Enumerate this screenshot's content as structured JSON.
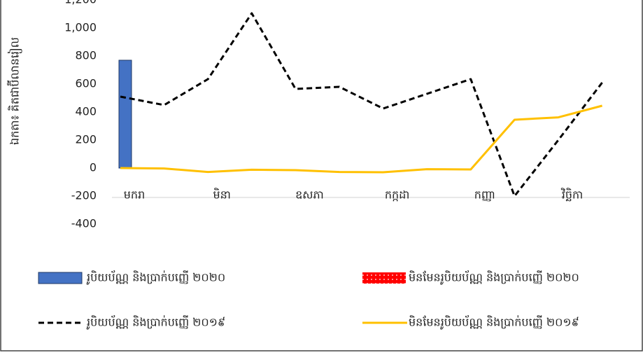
{
  "chart_data": {
    "type": "bar",
    "y_label": "ឯកតា៖ គិតជាប៊ីលានរៀល",
    "categories": [
      "មករា",
      null,
      "មិនា",
      null,
      "ឧសភា",
      null,
      "កក្កដា",
      null,
      "កញ្ញា",
      null,
      "វិច្ឆិកា",
      null
    ],
    "series": [
      {
        "name": "រូបិយប័ណ្ណ និងប្រាក់បញ្ញើ ២០២០",
        "type": "bar",
        "color": "#4472c4",
        "values": [
          770,
          null,
          null,
          null,
          null,
          null,
          null,
          null,
          null,
          null,
          null,
          null
        ]
      },
      {
        "name": "មិនមែនរូបិយប័ណ្ណ និងប្រាក់បញ្ញើ ២០២០",
        "type": "bar",
        "color": "#ff0000",
        "values": [
          null,
          null,
          null,
          null,
          null,
          null,
          null,
          null,
          null,
          null,
          null,
          null
        ]
      },
      {
        "name": "រូបិយប័ណ្ណ និងប្រាក់បញ្ញើ ២០១៩",
        "type": "line",
        "dashed": true,
        "color": "#000000",
        "values": [
          510,
          450,
          635,
          1105,
          565,
          580,
          425,
          530,
          635,
          -200,
          200,
          610
        ]
      },
      {
        "name": "មិនមែនរូបិយប័ណ្ណ និងប្រាក់បញ្ញើ ២០១៩",
        "type": "line",
        "color": "#ffc000",
        "values": [
          0,
          -3,
          -28,
          -12,
          -15,
          -28,
          -30,
          -8,
          -10,
          345,
          362,
          445
        ]
      }
    ],
    "ylim": [
      -400,
      1200
    ],
    "yticks": [
      {
        "value": 1200,
        "label": "1,200"
      },
      {
        "value": 1000,
        "label": "1,000"
      },
      800,
      600,
      400,
      200,
      0,
      -200,
      -400
    ],
    "grid": false
  }
}
